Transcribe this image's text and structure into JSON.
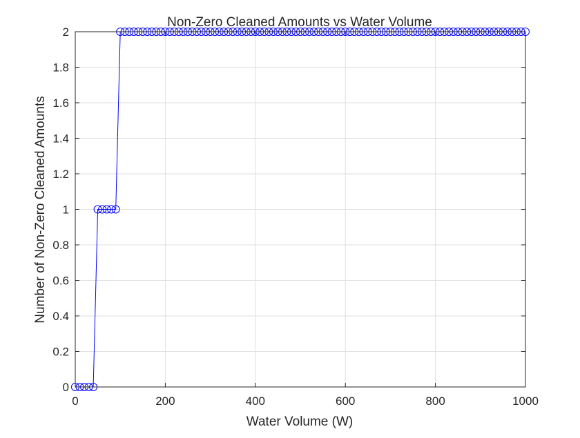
{
  "chart_data": {
    "type": "line",
    "title": "Non-Zero Cleaned Amounts vs Water Volume",
    "xlabel": "Water Volume (W)",
    "ylabel": "Number of Non-Zero Cleaned Amounts",
    "xlim": [
      0,
      1000
    ],
    "ylim": [
      0,
      2
    ],
    "x_ticks": [
      0,
      200,
      400,
      600,
      800,
      1000
    ],
    "y_ticks": [
      0,
      0.2,
      0.4,
      0.6,
      0.8,
      1,
      1.2,
      1.4,
      1.6,
      1.8,
      2
    ],
    "x_tick_labels": [
      "0",
      "200",
      "400",
      "600",
      "800",
      "1000"
    ],
    "y_tick_labels": [
      "0",
      "0.2",
      "0.4",
      "0.6",
      "0.8",
      "1",
      "1.2",
      "1.4",
      "1.6",
      "1.8",
      "2"
    ],
    "grid": true,
    "legend": false,
    "series": [
      {
        "color": "#0000ff",
        "marker": "circle",
        "x": [
          0,
          10,
          20,
          30,
          40,
          50,
          60,
          70,
          80,
          90,
          100,
          110,
          120,
          130,
          140,
          150,
          160,
          170,
          180,
          190,
          200,
          210,
          220,
          230,
          240,
          250,
          260,
          270,
          280,
          290,
          300,
          310,
          320,
          330,
          340,
          350,
          360,
          370,
          380,
          390,
          400,
          410,
          420,
          430,
          440,
          450,
          460,
          470,
          480,
          490,
          500,
          510,
          520,
          530,
          540,
          550,
          560,
          570,
          580,
          590,
          600,
          610,
          620,
          630,
          640,
          650,
          660,
          670,
          680,
          690,
          700,
          710,
          720,
          730,
          740,
          750,
          760,
          770,
          780,
          790,
          800,
          810,
          820,
          830,
          840,
          850,
          860,
          870,
          880,
          890,
          900,
          910,
          920,
          930,
          940,
          950,
          960,
          970,
          980,
          990,
          1000
        ],
        "y": [
          0,
          0,
          0,
          0,
          0,
          1,
          1,
          1,
          1,
          1,
          2,
          2,
          2,
          2,
          2,
          2,
          2,
          2,
          2,
          2,
          2,
          2,
          2,
          2,
          2,
          2,
          2,
          2,
          2,
          2,
          2,
          2,
          2,
          2,
          2,
          2,
          2,
          2,
          2,
          2,
          2,
          2,
          2,
          2,
          2,
          2,
          2,
          2,
          2,
          2,
          2,
          2,
          2,
          2,
          2,
          2,
          2,
          2,
          2,
          2,
          2,
          2,
          2,
          2,
          2,
          2,
          2,
          2,
          2,
          2,
          2,
          2,
          2,
          2,
          2,
          2,
          2,
          2,
          2,
          2,
          2,
          2,
          2,
          2,
          2,
          2,
          2,
          2,
          2,
          2,
          2,
          2,
          2,
          2,
          2,
          2,
          2,
          2,
          2,
          2,
          2
        ]
      }
    ]
  }
}
